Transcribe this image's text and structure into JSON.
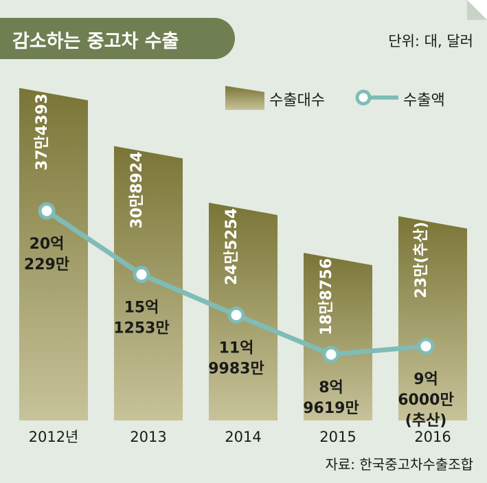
{
  "title": "감소하는 중고차 수출",
  "unit": "단위: 대, 달러",
  "source": "자료: 한국중고차수출조합",
  "colors": {
    "background": "#e3ebe2",
    "banner": "#6f7f52",
    "bar_top": "#7a7536",
    "bar_bottom": "#c7c39a",
    "line": "#7fbcb7"
  },
  "chart_data": {
    "type": "bar",
    "categories": [
      "2012년",
      "2013",
      "2014",
      "2015",
      "2016"
    ],
    "series": [
      {
        "name": "수출대수",
        "type": "bar",
        "values": [
          374393,
          308924,
          245254,
          188756,
          230000
        ],
        "labels": [
          "37만4393",
          "30만8924",
          "24만5254",
          "18만8756",
          "23만(추산)"
        ]
      },
      {
        "name": "수출액",
        "type": "line",
        "values": [
          2002290000,
          1512530000,
          1199830000,
          896190000,
          960000000
        ],
        "labels": [
          [
            "20억",
            "229만"
          ],
          [
            "15억",
            "1253만"
          ],
          [
            "11억",
            "9983만"
          ],
          [
            "8억",
            "9619만"
          ],
          [
            "9억",
            "6000만",
            "(추산)"
          ]
        ]
      }
    ]
  }
}
